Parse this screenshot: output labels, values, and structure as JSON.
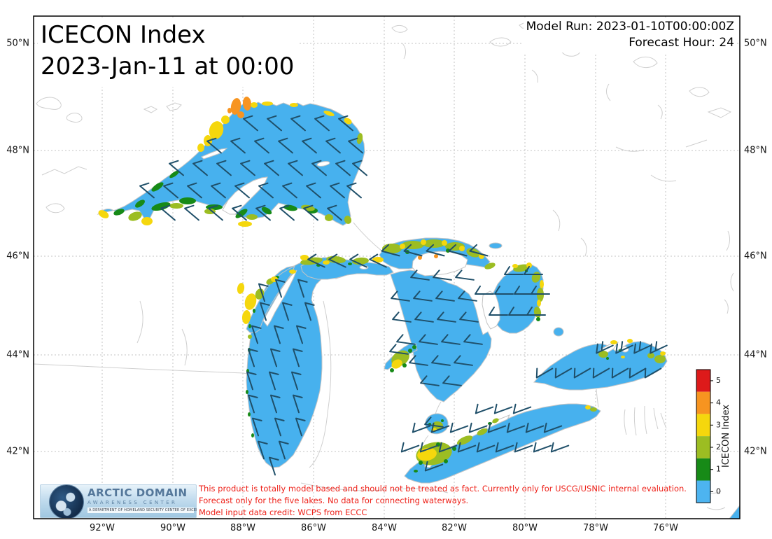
{
  "header": {
    "title_line1": "ICECON Index",
    "title_line2": "2023-Jan-11 at 00:00",
    "model_run": "Model Run: 2023-01-10T00:00:00Z",
    "forecast_hour": "Forecast Hour: 24"
  },
  "axes": {
    "lat_ticks": [
      "50°N",
      "48°N",
      "46°N",
      "44°N",
      "42°N"
    ],
    "lon_ticks": [
      "92°W",
      "90°W",
      "88°W",
      "86°W",
      "84°W",
      "82°W",
      "80°W",
      "78°W",
      "76°W"
    ]
  },
  "colorbar": {
    "label": "ICECON Index",
    "tick_labels": [
      "5",
      "4",
      "3",
      "2",
      "1",
      "0"
    ],
    "cell_colors_top_to_bottom": [
      "#dd1a1a",
      "#f79420",
      "#f5d70d",
      "#9cbd22",
      "#178a17",
      "#4db4f0"
    ]
  },
  "map_colors": {
    "lake_water": "#47b1ee",
    "wind_barb": "#1f4f69",
    "coastline": "#cfcfcf",
    "gridline": "#c3c3c3"
  },
  "disclaimer": {
    "lines": [
      "This product is totally model based and should not be treated as fact. Currently only for USCG/USNIC internal evaluation.",
      "Forecast only for the five lakes. No data for connecting waterways.",
      "Model input data credit: WCPS from ECCC"
    ]
  },
  "logo": {
    "line1": "ARCTIC DOMAIN",
    "line2": "AWARENESS CENTER",
    "line3": "A DEPARTMENT OF HOMELAND SECURITY CENTER OF EXCELLENCE"
  }
}
